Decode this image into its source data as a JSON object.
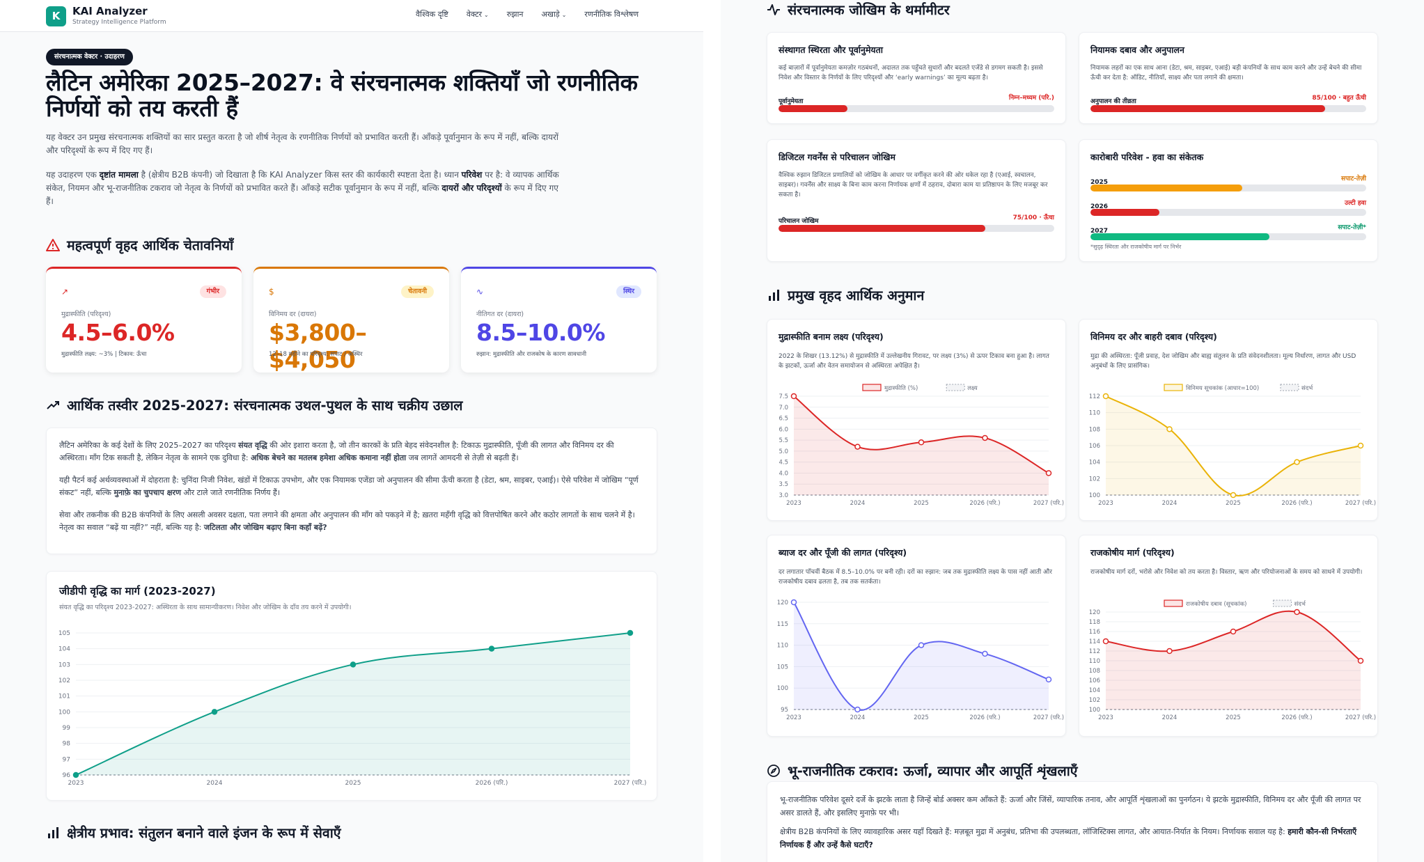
{
  "app": {
    "brand": "KAI Analyzer",
    "brand_sub": "Strategy Intelligence Platform",
    "logo_letter": "K"
  },
  "nav": [
    {
      "label": "वैश्विक दृष्टि",
      "has_menu": false
    },
    {
      "label": "वेक्टर",
      "has_menu": true
    },
    {
      "label": "रुझान",
      "has_menu": false
    },
    {
      "label": "अखाड़े",
      "has_menu": true
    },
    {
      "label": "रणनीतिक विश्लेषण",
      "has_menu": false
    }
  ],
  "hero": {
    "badge": "संरचनात्मक वेक्टर · उदाहरण",
    "title": "लैटिन अमेरिका 2025–2027: वे संरचनात्मक शक्तियाँ जो रणनीतिक निर्णयों को तय करती हैं",
    "lead1": "यह वेक्टर उन प्रमुख संरचनात्मक शक्तियों का सार प्रस्तुत करता है जो शीर्ष नेतृत्व के रणनीतिक निर्णयों को प्रभावित करती हैं। आँकड़े पूर्वानुमान के रूप में नहीं, बल्कि दायरों और परिदृश्यों के रूप में दिए गए हैं।",
    "lead2_a": "यह उदाहरण एक ",
    "lead2_b": "दृष्टांत मामला",
    "lead2_c": " है (क्षेत्रीय B2B कंपनी) जो दिखाता है कि KAI Analyzer किस स्तर की कार्यकारी स्पष्टता देता है। ध्यान ",
    "lead2_d": "परिवेश",
    "lead2_e": " पर है: वे व्यापक आर्थिक संकेत, नियमन और भू-राजनीतिक टकराव जो नेतृत्व के निर्णयों को प्रभावित करते हैं। आँकड़े सटीक पूर्वानुमान के रूप में नहीं, बल्कि ",
    "lead2_f": "दायरों और परिदृश्यों",
    "lead2_g": " के रूप में दिए गए हैं।"
  },
  "warnings": {
    "heading": "महत्वपूर्ण वृहद आर्थिक चेतावनियाँ",
    "cards": [
      {
        "icon": "↗",
        "pill": "गंभीर",
        "label": "मुद्रास्फीति (परिदृश्य)",
        "value": "4.5–6.0%",
        "note": "मुद्रास्फीति लक्ष्य: ~3% | टिकाव: ऊँचा",
        "color": "#dc2626",
        "pill_bg": "#fee2e2"
      },
      {
        "icon": "$",
        "pill": "चेतावनी",
        "label": "विनिमय दर (दायरा)",
        "value": "$3,800–$4,050",
        "note": "12–18 महीने का परिदृश्य: सपाट / अस्थिर",
        "color": "#d97706",
        "pill_bg": "#fef3c7"
      },
      {
        "icon": "∿",
        "pill": "स्थिर",
        "label": "नीतिगत दर (दायरा)",
        "value": "8.5–10.0%",
        "note": "रुझान: मुद्रास्फीति और राजकोष के कारण सावधानी",
        "color": "#4f46e5",
        "pill_bg": "#e0e7ff"
      }
    ]
  },
  "economy": {
    "heading": "आर्थिक तस्वीर 2025-2027: संरचनात्मक उथल-पुथल के साथ चक्रीय उछाल",
    "p1_a": "लैटिन अमेरिका के कई देशों के लिए 2025–2027 का परिदृश्य ",
    "p1_b": "संयत वृद्धि",
    "p1_c": " की ओर इशारा करता है, जो तीन कारकों के प्रति बेहद संवेदनशील है: टिकाऊ मुद्रास्फीति, पूँजी की लागत और विनिमय दर की अस्थिरता। माँग टिक सकती है, लेकिन नेतृत्व के सामने एक दुविधा है: ",
    "p1_d": "अधिक बेचने का मतलब हमेशा अधिक कमाना नहीं होता",
    "p1_e": " जब लागतें आमदनी से तेज़ी से बढ़ती हैं।",
    "p2_a": "यही पैटर्न कई अर्थव्यवस्थाओं में दोहराता है: चुनिंदा निजी निवेश, खंडों में टिकाऊ उपभोग, और एक नियामक एजेंडा जो अनुपालन की सीमा ऊँची करता है (डेटा, श्रम, साइबर, एआई)। ऐसे परिवेश में जोखिम “पूर्ण संकट” नहीं, बल्कि ",
    "p2_b": "मुनाफ़े का चुपचाप क्षरण",
    "p2_c": " और टाले जाते रणनीतिक निर्णय हैं।",
    "p3_a": "सेवा और तकनीक की B2B कंपनियों के लिए असली अवसर दक्षता, पता लगाने की क्षमता और अनुपालन की माँग को पकड़ने में है; ख़तरा महँगी वृद्धि को वित्तपोषित करने और कठोर लागतों के साथ चलने में है। नेतृत्व का सवाल “बढ़ें या नहीं?” नहीं, बल्कि यह है: ",
    "p3_b": "जटिलता और जोखिम बढ़ाए बिना कहाँ बढ़ें?"
  },
  "gdp": {
    "title": "जीडीपी वृद्धि का मार्ग (2023-2027)",
    "subtitle": "संयत वृद्धि का परिदृश्य 2023-2027: अस्थिरता के साथ सामान्यीकरण। निवेश और जोखिम के दाँव तय करने में उपयोगी।"
  },
  "regional": {
    "heading": "क्षेत्रीय प्रभाव: संतुलन बनाने वाले इंजन के रूप में सेवाएँ"
  },
  "thermo": {
    "heading": "संरचनात्मक जोखिम के थर्मामीटर",
    "cards": [
      {
        "title": "संस्थागत स्थिरता और पूर्वानुमेयता",
        "desc": "कई बाज़ारों में पूर्वानुमेयता कमज़ोर गठबंधनों, अदालत तक पहुँचते सुधारों और बदलते एजेंडे से डगमग सकती है। इससे निवेश और विस्तार के निर्णयों के लिए परिदृश्यों और ‘early warnings’ का मूल्य बढ़ता है।",
        "bar_label": "पूर्वानुमेयता",
        "bar_value": "निम्न–मध्यम (परि.)",
        "fill": 0.25,
        "color": "#dc2626"
      },
      {
        "title": "नियामक दबाव और अनुपालन",
        "desc": "नियामक लहरों का एक साथ आना (डेटा, श्रम, साइबर, एआई) बड़ी कंपनियों के साथ काम करने और उन्हें बेचने की सीमा ऊँची कर देता है: ऑडिट, नीतियाँ, साक्ष्य और पता लगाने की क्षमता।",
        "bar_label": "अनुपालन की तीव्रता",
        "bar_value": "85/100 · बहुत ऊँची",
        "fill": 0.85,
        "color": "#dc2626"
      },
      {
        "title": "डिजिटल गवर्नेंस से परिचालन जोखिम",
        "desc": "वैश्विक रुझान डिजिटल प्रणालियों को जोखिम के आधार पर वर्गीकृत करने की ओर धकेल रहा है (एआई, स्वचालन, साइबर)। गवर्नेंस और साक्ष्य के बिना काम करना निर्णायक क्षणों में ठहराव, दोबारा काम या प्रतिष्ठापन के लिए मजबूर कर सकता है।",
        "bar_label": "परिचालन जोखिम",
        "bar_value": "75/100 · ऊँचा",
        "fill": 0.75,
        "color": "#dc2626"
      },
      {
        "title": "कारोबारी परिवेश - हवा का संकेतक",
        "rows": [
          {
            "label": "2025",
            "value": "सपाट-तेज़ी",
            "fill": 0.55,
            "color": "#f59e0b",
            "vcolor": "#d97706"
          },
          {
            "label": "2026",
            "value": "उल्टी हवा",
            "fill": 0.25,
            "color": "#dc2626",
            "vcolor": "#dc2626"
          },
          {
            "label": "2027",
            "value": "सपाट-तेज़ी*",
            "fill": 0.65,
            "color": "#10b981",
            "vcolor": "#059669"
          }
        ],
        "note": "*सुदृढ़ स्थिरता और राजकोषीय मार्ग पर निर्भर"
      }
    ]
  },
  "macro": {
    "heading": "प्रमुख वृहद आर्थिक अनुमान",
    "cards": [
      {
        "title": "मुद्रास्फीति बनाम लक्ष्य (परिदृश्य)",
        "desc": "2022 के शिखर (13.12%) से मुद्रास्फीति में उल्लेखनीय गिरावट, पर लक्ष्य (3%) से ऊपर टिकाव बना हुआ है। लागत के झटकों, ऊर्जा और वेतन समायोजन से अस्थिरता अपेक्षित है।",
        "legend": "मुद्रास्फीति (%)",
        "legend2": "लक्ष्य"
      },
      {
        "title": "विनिमय दर और बाहरी दबाव (परिदृश्य)",
        "desc": "मुद्रा की अस्थिरता: पूँजी प्रवाह, देश जोखिम और बाह्य संतुलन के प्रति संवेदनशीलता। मूल्य निर्धारण, लागत और USD अनुबंधों के लिए प्रासंगिक।",
        "legend": "विनिमय सूचकांक (आधार=100)",
        "legend2": "संदर्भ"
      },
      {
        "title": "ब्याज दर और पूँजी की लागत (परिदृश्य)",
        "desc": "दर लगातार पाँचवीं बैठक में 8.5–10.0% पर बनी रही। दरों का रुझान: जब तक मुद्रास्फीति लक्ष्य के पास नहीं आती और राजकोषीय दबाव ढलता है, तब तक सतर्कता।"
      },
      {
        "title": "राजकोषीय मार्ग (परिदृश्य)",
        "desc": "राजकोषीय मार्ग दरों, भरोसे और निवेश को तय करता है। विस्तार, ऋण और परियोजनाओं के समय को साधने में उपयोगी।",
        "legend": "राजकोषीय दबाव (सूचकांक)",
        "legend2": "संदर्भ"
      }
    ]
  },
  "geo": {
    "heading": "भू-राजनीतिक टकराव: ऊर्जा, व्यापार और आपूर्ति शृंखलाएँ",
    "p1": "भू-राजनीतिक परिवेश दूसरे दर्जे के झटके लाता है जिन्हें बोर्ड अक्सर कम आँकते हैं: ऊर्जा और जिंसें, व्यापारिक तनाव, और आपूर्ति शृंखलाओं का पुनर्गठन। ये झटके मुद्रास्फीति, विनिमय दर और पूँजी की लागत पर असर डालते हैं, और इसलिए मुनाफ़े पर भी।",
    "p2_a": "क्षेत्रीय B2B कंपनियों के लिए व्यावहारिक असर यहाँ दिखते हैं: मज़बूत मुद्रा में अनुबंध, प्रतिभा की उपलब्धता, लॉजिस्टिक्स लागत, और आयात-निर्यात के नियम। निर्णायक सवाल यह है: ",
    "p2_b": "हमारी कौन-सी निर्भरताएँ निर्णायक हैं और उन्हें कैसे घटाएँ?"
  },
  "chart_data": [
    {
      "type": "area",
      "title": "जीडीपी वृद्धि का मार्ग (2023-2027)",
      "x": [
        "2023",
        "2024",
        "2025",
        "2026 (परि.)",
        "2027 (परि.)"
      ],
      "y": [
        96,
        100,
        103,
        104,
        105
      ],
      "ylim": [
        96,
        105
      ],
      "yticks": [
        96,
        97,
        98,
        99,
        100,
        101,
        102,
        103,
        104,
        105
      ],
      "color": "#0f9f89"
    },
    {
      "type": "line",
      "title": "मुद्रास्फीति बनाम लक्ष्य (परिदृश्य)",
      "x": [
        "2023",
        "2024",
        "2025",
        "2026 (परि.)",
        "2027 (परि.)"
      ],
      "y": [
        7.5,
        5.2,
        5.4,
        5.6,
        4.0
      ],
      "target": 3.0,
      "ylim": [
        3.0,
        7.5
      ],
      "yticks": [
        3.0,
        3.5,
        4.0,
        4.5,
        5.0,
        5.5,
        6.0,
        6.5,
        7.0,
        7.5
      ],
      "color": "#dc2626"
    },
    {
      "type": "line",
      "title": "विनिमय दर और बाहरी दबाव (परिदृश्य)",
      "x": [
        "2023",
        "2024",
        "2025",
        "2026 (परि.)",
        "2027 (परि.)"
      ],
      "y": [
        112,
        108,
        100,
        104,
        106
      ],
      "ylim": [
        100,
        112
      ],
      "yticks": [
        100,
        102,
        104,
        106,
        108,
        110,
        112
      ],
      "color": "#eab308"
    },
    {
      "type": "line",
      "title": "ब्याज दर और पूँजी की लागत (परिदृश्य)",
      "x": [
        "2023",
        "2024",
        "2025",
        "2026 (परि.)",
        "2027 (परि.)"
      ],
      "y": [
        120,
        95,
        110,
        108,
        102
      ],
      "ylim": [
        95,
        120
      ],
      "yticks": [
        95,
        100,
        105,
        110,
        115,
        120
      ],
      "color": "#6366f1"
    },
    {
      "type": "line",
      "title": "राजकोषीय मार्ग (परिदृश्य)",
      "x": [
        "2023",
        "2024",
        "2025",
        "2026 (परि.)",
        "2027 (परि.)"
      ],
      "y": [
        114,
        112,
        116,
        120,
        110
      ],
      "ylim": [
        100,
        120
      ],
      "yticks": [
        100,
        102,
        104,
        106,
        108,
        110,
        112,
        114,
        116,
        118,
        120
      ],
      "color": "#dc2626"
    }
  ]
}
